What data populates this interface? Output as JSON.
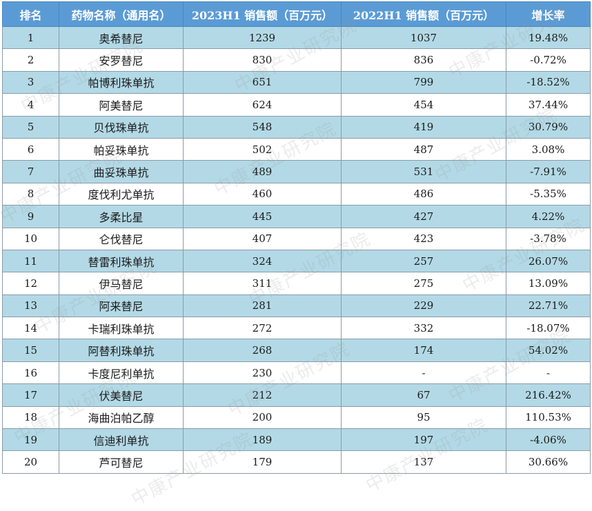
{
  "headers": [
    "排名",
    "药物名称（通用名）",
    "2023H1 销售额（百万元）",
    "2022H1 销售额（百万元）",
    "增长率"
  ],
  "watermark": "中康产业研究院",
  "rows": [
    {
      "rank": "1",
      "name": "奥希替尼",
      "s2023": "1239",
      "s2022": "1037",
      "growth": "19.48%"
    },
    {
      "rank": "2",
      "name": "安罗替尼",
      "s2023": "830",
      "s2022": "836",
      "growth": "-0.72%"
    },
    {
      "rank": "3",
      "name": "帕博利珠单抗",
      "s2023": "651",
      "s2022": "799",
      "growth": "-18.52%"
    },
    {
      "rank": "4",
      "name": "阿美替尼",
      "s2023": "624",
      "s2022": "454",
      "growth": "37.44%"
    },
    {
      "rank": "5",
      "name": "贝伐珠单抗",
      "s2023": "548",
      "s2022": "419",
      "growth": "30.79%"
    },
    {
      "rank": "6",
      "name": "帕妥珠单抗",
      "s2023": "502",
      "s2022": "487",
      "growth": "3.08%"
    },
    {
      "rank": "7",
      "name": "曲妥珠单抗",
      "s2023": "489",
      "s2022": "531",
      "growth": "-7.91%"
    },
    {
      "rank": "8",
      "name": "度伐利尤单抗",
      "s2023": "460",
      "s2022": "486",
      "growth": "-5.35%"
    },
    {
      "rank": "9",
      "name": "多柔比星",
      "s2023": "445",
      "s2022": "427",
      "growth": "4.22%"
    },
    {
      "rank": "10",
      "name": "仑伐替尼",
      "s2023": "407",
      "s2022": "423",
      "growth": "-3.78%"
    },
    {
      "rank": "11",
      "name": "替雷利珠单抗",
      "s2023": "324",
      "s2022": "257",
      "growth": "26.07%"
    },
    {
      "rank": "12",
      "name": "伊马替尼",
      "s2023": "311",
      "s2022": "275",
      "growth": "13.09%"
    },
    {
      "rank": "13",
      "name": "阿来替尼",
      "s2023": "281",
      "s2022": "229",
      "growth": "22.71%"
    },
    {
      "rank": "14",
      "name": "卡瑞利珠单抗",
      "s2023": "272",
      "s2022": "332",
      "growth": "-18.07%"
    },
    {
      "rank": "15",
      "name": "阿替利珠单抗",
      "s2023": "268",
      "s2022": "174",
      "growth": "54.02%"
    },
    {
      "rank": "16",
      "name": "卡度尼利单抗",
      "s2023": "230",
      "s2022": "-",
      "growth": "-"
    },
    {
      "rank": "17",
      "name": "伏美替尼",
      "s2023": "212",
      "s2022": "67",
      "growth": "216.42%"
    },
    {
      "rank": "18",
      "name": "海曲泊帕乙醇",
      "s2023": "200",
      "s2022": "95",
      "growth": "110.53%"
    },
    {
      "rank": "19",
      "name": "信迪利单抗",
      "s2023": "189",
      "s2022": "197",
      "growth": "-4.06%"
    },
    {
      "rank": "20",
      "name": "芦可替尼",
      "s2023": "179",
      "s2022": "137",
      "growth": "30.66%"
    }
  ]
}
